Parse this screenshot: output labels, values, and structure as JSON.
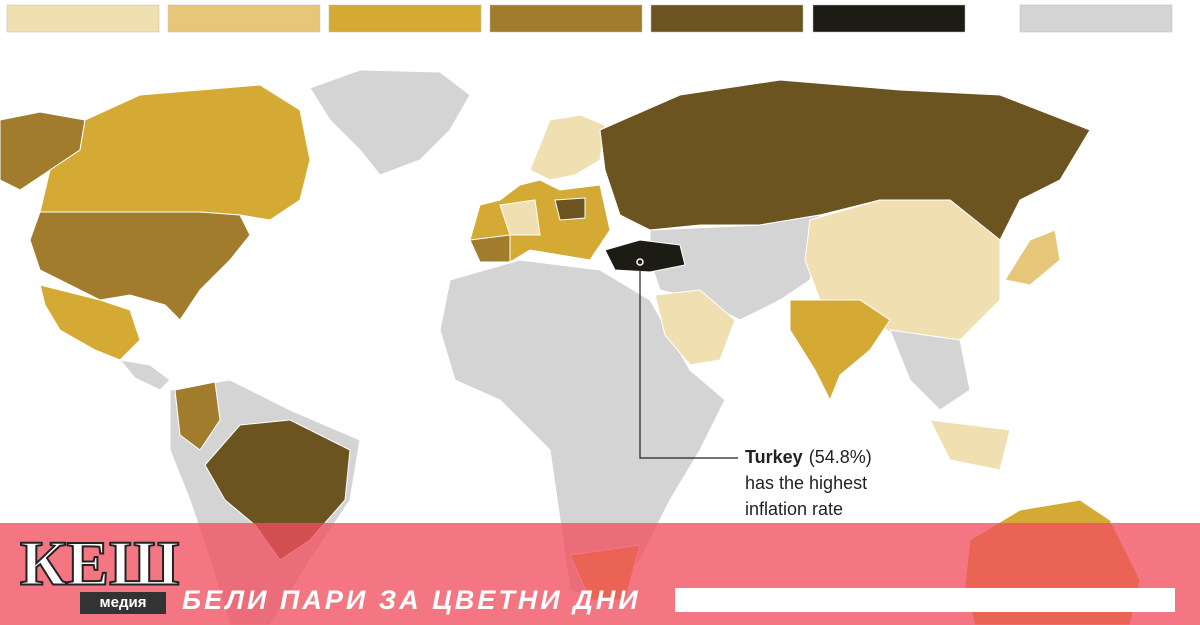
{
  "legend": {
    "colors": [
      "#f0dfb0",
      "#e6c77a",
      "#d4a934",
      "#a07c2c",
      "#6b5420",
      "#1c1b14",
      "#d4d4d4"
    ]
  },
  "annotation": {
    "country": "Turkey",
    "value": "(54.8%)",
    "lines": [
      "has the highest",
      "inflation rate"
    ]
  },
  "banner": {
    "logo": "КЕШ",
    "logo_sub": "медия",
    "tagline": "БЕЛИ ПАРИ ЗА ЦВЕТНИ ДНИ"
  }
}
